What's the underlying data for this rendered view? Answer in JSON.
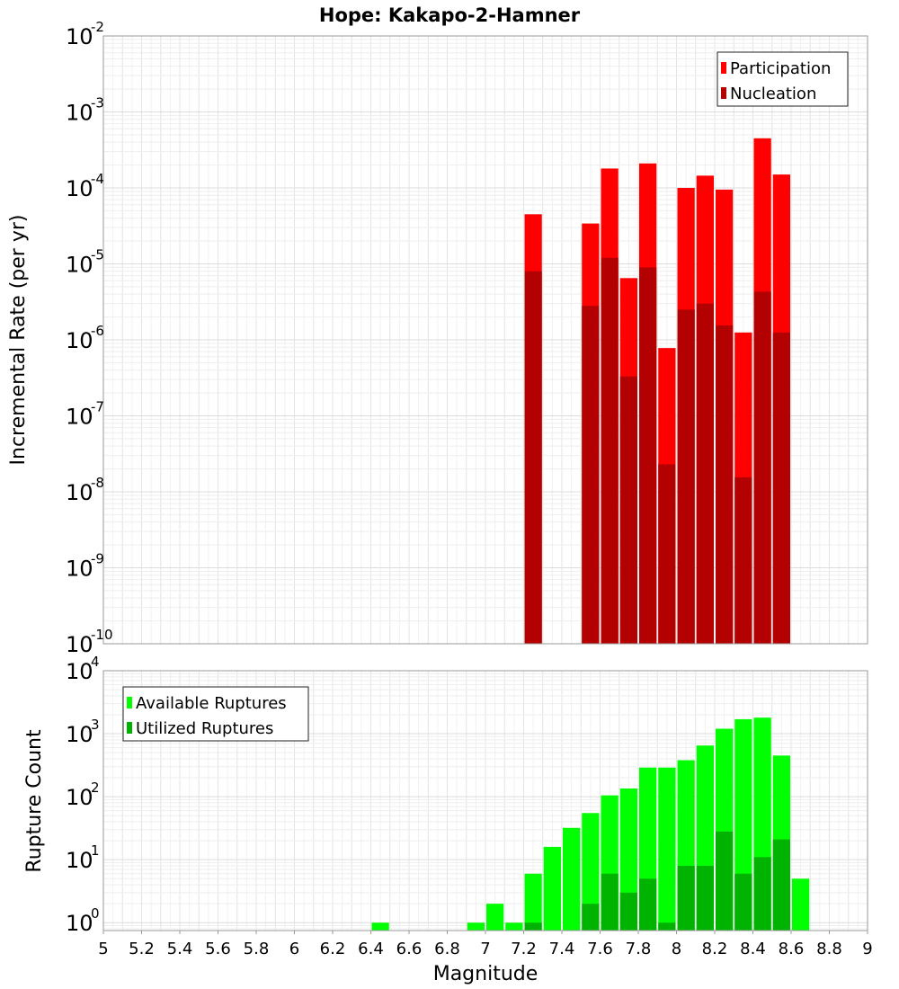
{
  "chart_data": [
    {
      "type": "bar",
      "title": "Hope: Kakapo-2-Hamner",
      "ylabel": "Incremental Rate (per yr)",
      "xlabel": "",
      "yscale": "log",
      "ylim": [
        1e-10,
        0.01
      ],
      "xlim": [
        5,
        9
      ],
      "y_ticks": [
        {
          "base": "10",
          "exp": "-10"
        },
        {
          "base": "10",
          "exp": "-9"
        },
        {
          "base": "10",
          "exp": "-8"
        },
        {
          "base": "10",
          "exp": "-7"
        },
        {
          "base": "10",
          "exp": "-6"
        },
        {
          "base": "10",
          "exp": "-5"
        },
        {
          "base": "10",
          "exp": "-4"
        },
        {
          "base": "10",
          "exp": "-3"
        },
        {
          "base": "10",
          "exp": "-2"
        }
      ],
      "grid": true,
      "legend_position": "top-right",
      "bar_width": 0.1,
      "series": [
        {
          "name": "Participation",
          "color": "#ff0000",
          "x": [
            7.25,
            7.55,
            7.65,
            7.75,
            7.85,
            7.95,
            8.05,
            8.15,
            8.25,
            8.35,
            8.45,
            8.55
          ],
          "values": [
            4.5e-05,
            3.4e-05,
            0.00018,
            6.5e-06,
            0.00021,
            7.8e-07,
            0.0001,
            0.000145,
            9.5e-05,
            1.25e-06,
            0.00045,
            0.00015
          ]
        },
        {
          "name": "Nucleation",
          "color": "#b30000",
          "x": [
            7.25,
            7.55,
            7.65,
            7.75,
            7.85,
            7.95,
            8.05,
            8.15,
            8.25,
            8.35,
            8.45,
            8.55
          ],
          "values": [
            8e-06,
            2.8e-06,
            1.2e-05,
            3.3e-07,
            9e-06,
            2.3e-08,
            2.5e-06,
            3e-06,
            1.55e-06,
            1.55e-08,
            4.3e-06,
            1.25e-06
          ]
        }
      ]
    },
    {
      "type": "bar",
      "title": "",
      "ylabel": "Rupture Count",
      "xlabel": "Magnitude",
      "yscale": "log",
      "ylim": [
        0.75,
        10000
      ],
      "xlim": [
        5,
        9
      ],
      "y_ticks": [
        {
          "base": "10",
          "exp": "0"
        },
        {
          "base": "10",
          "exp": "1"
        },
        {
          "base": "10",
          "exp": "2"
        },
        {
          "base": "10",
          "exp": "3"
        },
        {
          "base": "10",
          "exp": "4"
        }
      ],
      "x_ticks": [
        "5",
        "5.2",
        "5.4",
        "5.6",
        "5.8",
        "6",
        "6.2",
        "6.4",
        "6.6",
        "6.8",
        "7",
        "7.2",
        "7.4",
        "7.6",
        "7.8",
        "8",
        "8.2",
        "8.4",
        "8.6",
        "8.8",
        "9"
      ],
      "grid": true,
      "legend_position": "top-left",
      "bar_width": 0.1,
      "series": [
        {
          "name": "Available Ruptures",
          "color": "#00ff00",
          "x": [
            6.45,
            6.95,
            7.05,
            7.15,
            7.25,
            7.35,
            7.45,
            7.55,
            7.65,
            7.75,
            7.85,
            7.95,
            8.05,
            8.15,
            8.25,
            8.35,
            8.45,
            8.55,
            8.65
          ],
          "values": [
            1,
            1,
            2,
            1,
            6,
            16,
            32,
            55,
            105,
            135,
            290,
            290,
            380,
            650,
            1200,
            1700,
            1800,
            450,
            5
          ]
        },
        {
          "name": "Utilized Ruptures",
          "color": "#00b300",
          "x": [
            7.25,
            7.55,
            7.65,
            7.75,
            7.85,
            7.95,
            8.05,
            8.15,
            8.25,
            8.35,
            8.45,
            8.55
          ],
          "values": [
            1,
            2,
            6,
            3,
            5,
            1,
            8,
            8,
            28,
            6,
            11,
            21
          ]
        }
      ]
    }
  ]
}
